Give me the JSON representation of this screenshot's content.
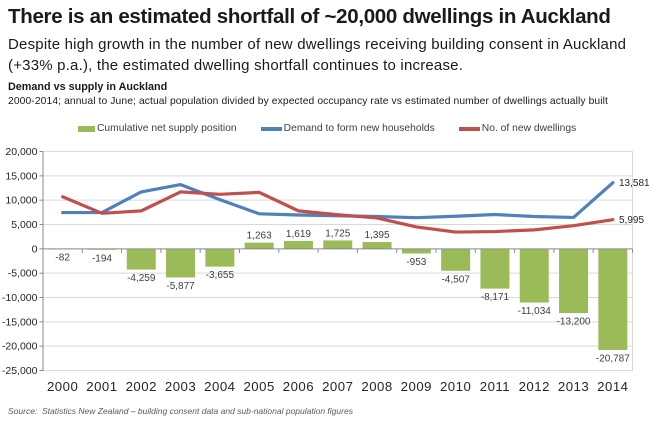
{
  "header": {
    "title": "There is an estimated shortfall of ~20,000 dwellings in Auckland",
    "subtitle_line1": "Despite high growth in the number of new dwellings receiving building consent in Auckland",
    "subtitle_line2": "(+33% p.a.), the estimated dwelling shortfall continues to increase."
  },
  "chart": {
    "title": "Demand vs supply in Auckland",
    "subtitle": "2000-2014; annual to June; actual population divided by expected occupancy rate vs estimated number of dwellings actually built",
    "source": "Source:  Statistics New Zealand – building consent data and sub-national population figures"
  },
  "chart_data": {
    "type": "combo",
    "categories": [
      "2000",
      "2001",
      "2002",
      "2003",
      "2004",
      "2005",
      "2006",
      "2007",
      "2008",
      "2009",
      "2010",
      "2011",
      "2012",
      "2013",
      "2014"
    ],
    "series": [
      {
        "name": "Cumulative net supply position",
        "type": "bar",
        "color": "#9bbb59",
        "values": [
          -82,
          -194,
          -4259,
          -5877,
          -3655,
          1263,
          1619,
          1725,
          1395,
          -953,
          -4507,
          -8171,
          -11034,
          -13200,
          -20787
        ]
      },
      {
        "name": "Demand to form new households",
        "type": "line",
        "color": "#4f81bd",
        "values": [
          7450,
          7450,
          11700,
          13200,
          10100,
          7200,
          6950,
          6800,
          6650,
          6400,
          6700,
          7050,
          6650,
          6450,
          13581
        ],
        "end_label": "13,581"
      },
      {
        "name": "No. of new dwellings",
        "type": "line",
        "color": "#c0504d",
        "values": [
          10700,
          7300,
          7800,
          11700,
          11200,
          11600,
          7800,
          7000,
          6350,
          4500,
          3450,
          3550,
          3900,
          4750,
          5995
        ],
        "end_label": "5,995"
      }
    ],
    "ylim": [
      -25000,
      20000
    ],
    "ytick_step": 5000,
    "grid": true,
    "legend_position": "top"
  }
}
